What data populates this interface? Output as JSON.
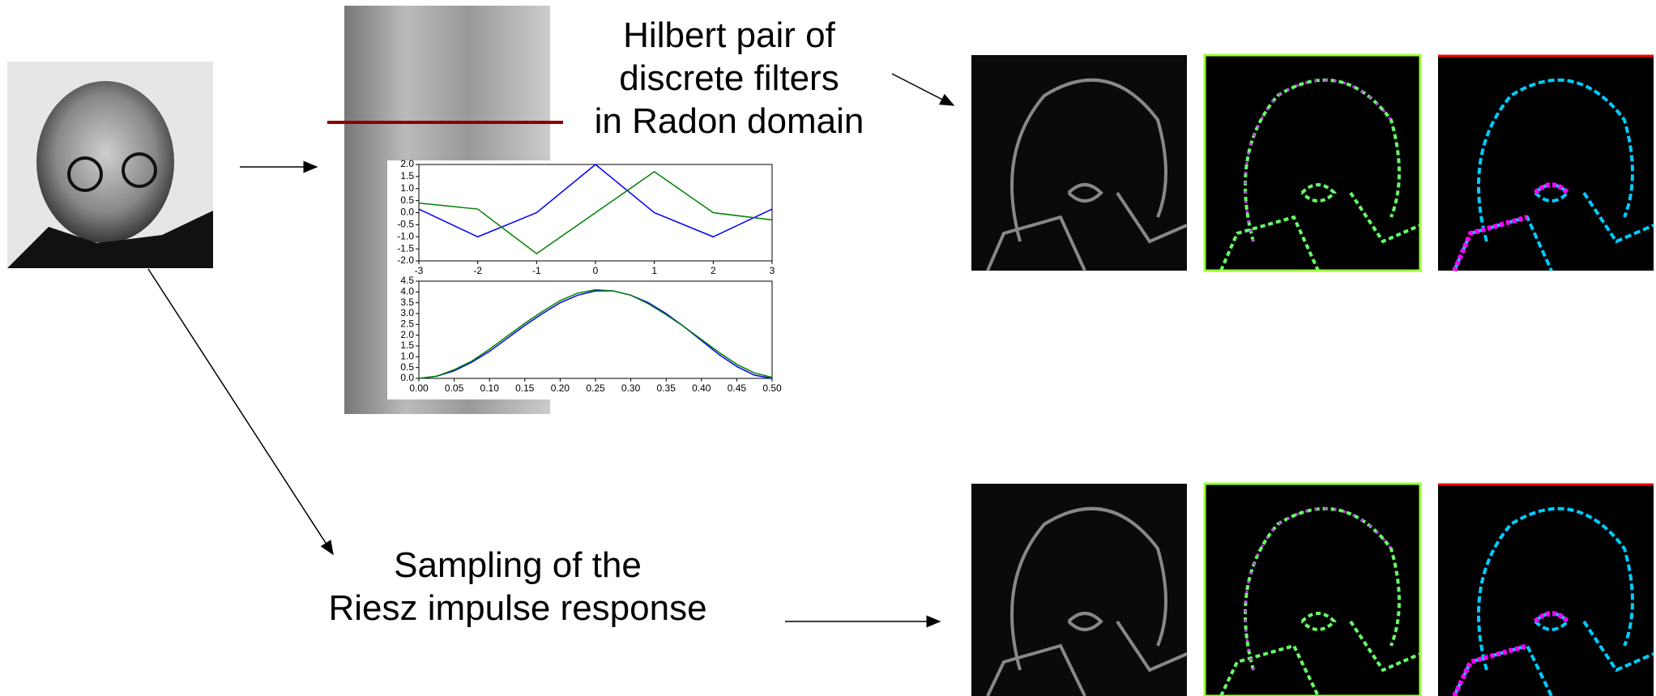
{
  "labels": {
    "hilbert": [
      "Hilbert pair of",
      "discrete filters",
      "in Radon domain"
    ],
    "riesz": [
      "Sampling of the",
      "Riesz impulse response"
    ]
  },
  "chart_data": [
    {
      "type": "line",
      "x": [
        -3,
        -2,
        -1,
        0,
        1,
        2,
        3
      ],
      "series": [
        {
          "color": "#0000ff",
          "values": [
            0.15,
            -1.0,
            0.0,
            2.0,
            0.0,
            -1.0,
            0.15
          ]
        },
        {
          "color": "#008000",
          "values": [
            0.4,
            0.15,
            -1.7,
            0.0,
            1.7,
            0.0,
            -0.3
          ]
        }
      ],
      "xlim": [
        -3,
        3
      ],
      "ylim": [
        -2,
        2
      ],
      "xticks": [
        -3,
        -2,
        -1,
        0,
        1,
        2,
        3
      ],
      "yticks": [
        {
          "value": 2,
          "label": "2.0"
        },
        1.5,
        {
          "value": 1,
          "label": "1.0"
        },
        0.5,
        {
          "value": 0,
          "label": "0.0"
        },
        -0.5,
        {
          "value": -1,
          "label": "-1.0"
        },
        -1.5,
        {
          "value": -2,
          "label": "-2.0"
        }
      ]
    },
    {
      "type": "line",
      "x": [
        0,
        0.025,
        0.05,
        0.075,
        0.1,
        0.125,
        0.15,
        0.175,
        0.2,
        0.225,
        0.25,
        0.275,
        0.3,
        0.325,
        0.35,
        0.375,
        0.4,
        0.425,
        0.45,
        0.475,
        0.5
      ],
      "series": [
        {
          "color": "#0000ff",
          "values": [
            0,
            0.1,
            0.35,
            0.75,
            1.25,
            1.85,
            2.45,
            3.0,
            3.5,
            3.85,
            4.05,
            4.05,
            3.85,
            3.5,
            3.0,
            2.4,
            1.75,
            1.1,
            0.55,
            0.15,
            0
          ]
        },
        {
          "color": "#008000",
          "values": [
            0,
            0.1,
            0.4,
            0.8,
            1.35,
            1.95,
            2.55,
            3.1,
            3.6,
            3.95,
            4.1,
            4.05,
            3.85,
            3.45,
            2.95,
            2.4,
            1.8,
            1.2,
            0.65,
            0.25,
            0.05
          ]
        }
      ],
      "xlim": [
        0,
        0.5
      ],
      "ylim": [
        0,
        4.5
      ],
      "xticks": [
        {
          "value": 0,
          "label": "0.00"
        },
        0.05,
        {
          "value": 0.1,
          "label": "0.10"
        },
        0.15,
        {
          "value": 0.2,
          "label": "0.20"
        },
        0.25,
        {
          "value": 0.3,
          "label": "0.30"
        },
        0.35,
        {
          "value": 0.4,
          "label": "0.40"
        },
        0.45,
        {
          "value": 0.5,
          "label": "0.50"
        }
      ],
      "yticks": [
        {
          "value": 0,
          "label": "0.0"
        },
        0.5,
        {
          "value": 1,
          "label": "1.0"
        },
        1.5,
        {
          "value": 2,
          "label": "2.0"
        },
        2.5,
        {
          "value": 3,
          "label": "3.0"
        },
        3.5,
        {
          "value": 4,
          "label": "4.0"
        },
        4.5
      ]
    }
  ]
}
